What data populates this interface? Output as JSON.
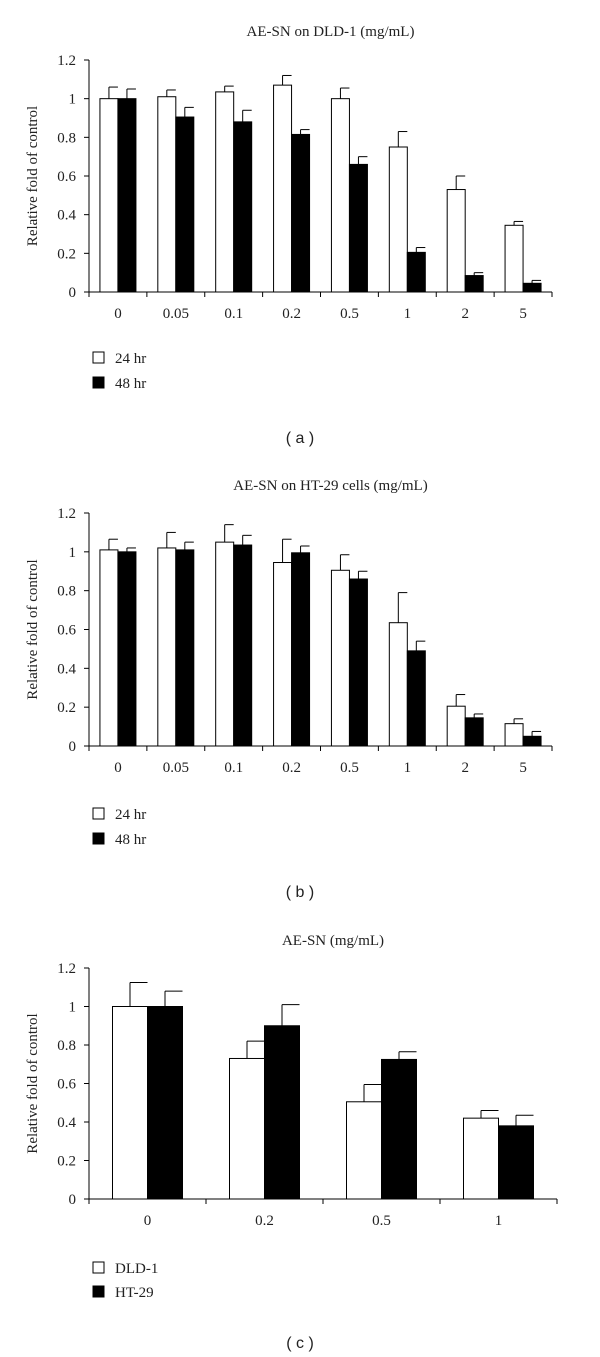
{
  "chart_data": [
    {
      "type": "bar",
      "title": "AE-SN on DLD-1 (mg/mL)",
      "xlabel": "",
      "ylabel": "Relative fold of control",
      "ylim": [
        0,
        1.2
      ],
      "yticks": [
        "0",
        "0.2",
        "0.4",
        "0.6",
        "0.8",
        "1",
        "1.2"
      ],
      "categories": [
        "0",
        "0.05",
        "0.1",
        "0.2",
        "0.5",
        "1",
        "2",
        "5"
      ],
      "series": [
        {
          "name": "24 hr",
          "color": "#ffffff",
          "values": [
            1.0,
            1.01,
            1.035,
            1.07,
            1.0,
            0.75,
            0.53,
            0.345
          ],
          "errors": [
            0.06,
            0.035,
            0.03,
            0.05,
            0.055,
            0.08,
            0.07,
            0.02
          ]
        },
        {
          "name": "48 hr",
          "color": "#000000",
          "values": [
            1.0,
            0.905,
            0.88,
            0.815,
            0.66,
            0.205,
            0.085,
            0.045
          ],
          "errors": [
            0.05,
            0.05,
            0.06,
            0.025,
            0.04,
            0.025,
            0.015,
            0.015
          ]
        }
      ],
      "legend": "bottom-left",
      "panel_label": "( a )"
    },
    {
      "type": "bar",
      "title": "AE-SN on HT-29 cells (mg/mL)",
      "xlabel": "",
      "ylabel": "Relative fold of control",
      "ylim": [
        0,
        1.2
      ],
      "yticks": [
        "0",
        "0.2",
        "0.4",
        "0.6",
        "0.8",
        "1",
        "1.2"
      ],
      "categories": [
        "0",
        "0.05",
        "0.1",
        "0.2",
        "0.5",
        "1",
        "2",
        "5"
      ],
      "series": [
        {
          "name": "24 hr",
          "color": "#ffffff",
          "values": [
            1.01,
            1.02,
            1.05,
            0.945,
            0.905,
            0.635,
            0.205,
            0.115
          ],
          "errors": [
            0.055,
            0.08,
            0.09,
            0.12,
            0.08,
            0.155,
            0.06,
            0.025
          ]
        },
        {
          "name": "48 hr",
          "color": "#000000",
          "values": [
            1.0,
            1.01,
            1.035,
            0.995,
            0.86,
            0.49,
            0.145,
            0.05
          ],
          "errors": [
            0.02,
            0.04,
            0.05,
            0.035,
            0.04,
            0.05,
            0.02,
            0.025
          ]
        }
      ],
      "legend": "bottom-left",
      "panel_label": "( b )"
    },
    {
      "type": "bar",
      "title": "AE-SN (mg/mL)",
      "xlabel": "",
      "ylabel": "Relative fold of control",
      "ylim": [
        0,
        1.2
      ],
      "yticks": [
        "0",
        "0.2",
        "0.4",
        "0.6",
        "0.8",
        "1",
        "1.2"
      ],
      "categories": [
        "0",
        "0.2",
        "0.5",
        "1"
      ],
      "series": [
        {
          "name": "DLD-1",
          "color": "#ffffff",
          "values": [
            1.0,
            0.73,
            0.505,
            0.42
          ],
          "errors": [
            0.125,
            0.09,
            0.09,
            0.04
          ]
        },
        {
          "name": "HT-29",
          "color": "#000000",
          "values": [
            1.0,
            0.9,
            0.725,
            0.38
          ],
          "errors": [
            0.08,
            0.11,
            0.04,
            0.055
          ]
        }
      ],
      "legend": "bottom-left",
      "panel_label": "( c )"
    }
  ]
}
